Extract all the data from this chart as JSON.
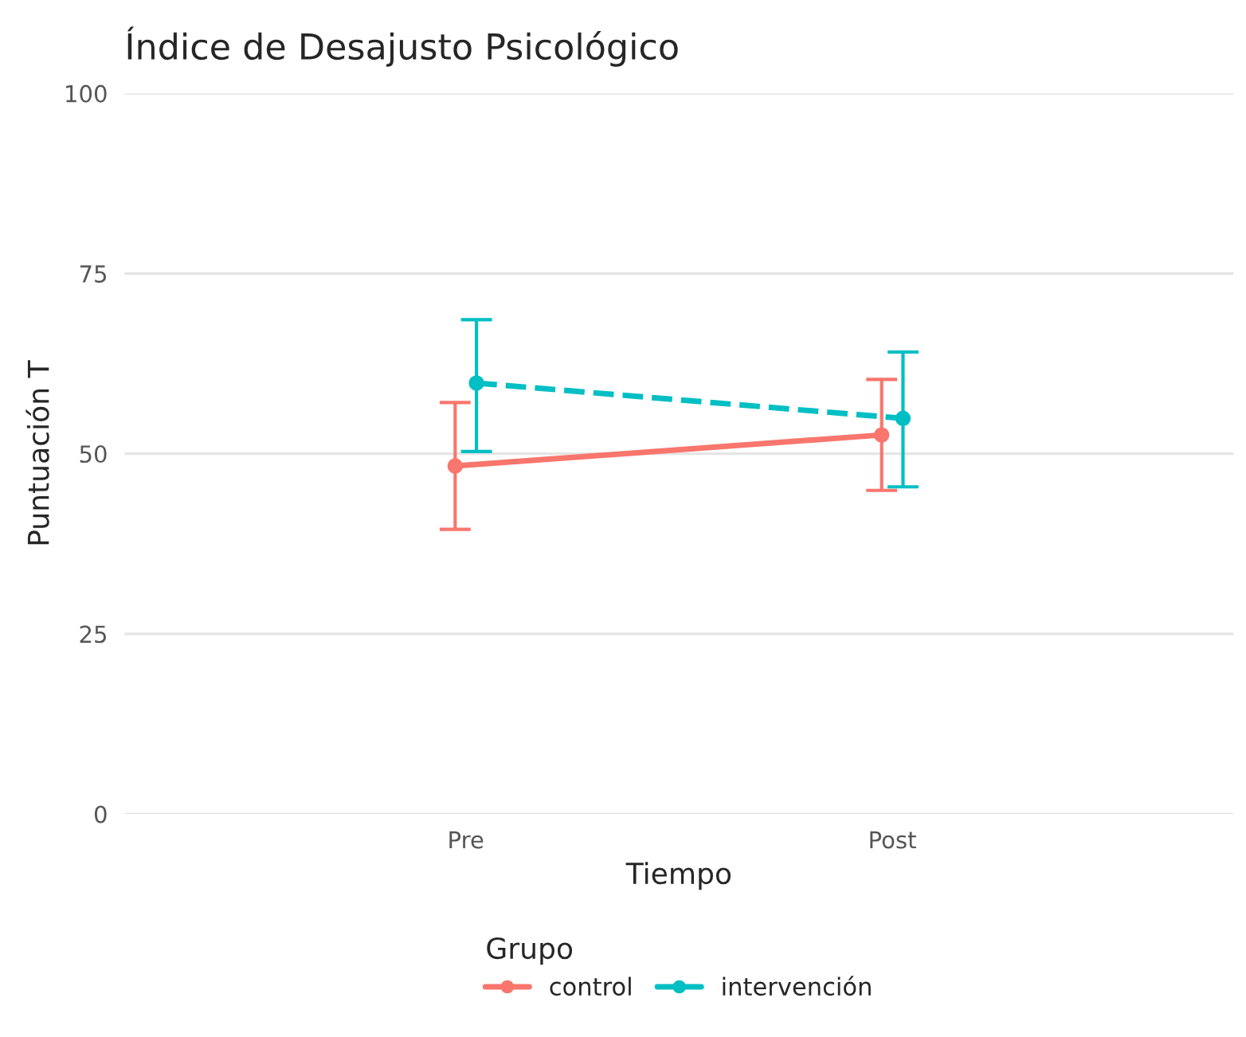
{
  "chart_data": {
    "type": "line",
    "title": "Índice de Desajusto Psicológico",
    "xlabel": "Tiempo",
    "ylabel": "Puntuación T",
    "legend_title": "Grupo",
    "categories": [
      "Pre",
      "Post"
    ],
    "series": [
      {
        "name": "control",
        "color": "#f8766d",
        "values": [
          48.3,
          52.6
        ],
        "errors": [
          [
            39.5,
            57.1
          ],
          [
            44.9,
            60.3
          ]
        ],
        "line_style": "solid"
      },
      {
        "name": "intervención",
        "color": "#00bfc4",
        "values": [
          59.8,
          54.9
        ],
        "errors": [
          [
            50.3,
            68.6
          ],
          [
            45.4,
            64.1
          ]
        ],
        "line_style": "dashed"
      }
    ],
    "ylim": [
      0,
      100
    ],
    "yticks": [
      0,
      25,
      50,
      75,
      100
    ],
    "grid": "y",
    "legend": "bottom",
    "marker": "circle"
  }
}
